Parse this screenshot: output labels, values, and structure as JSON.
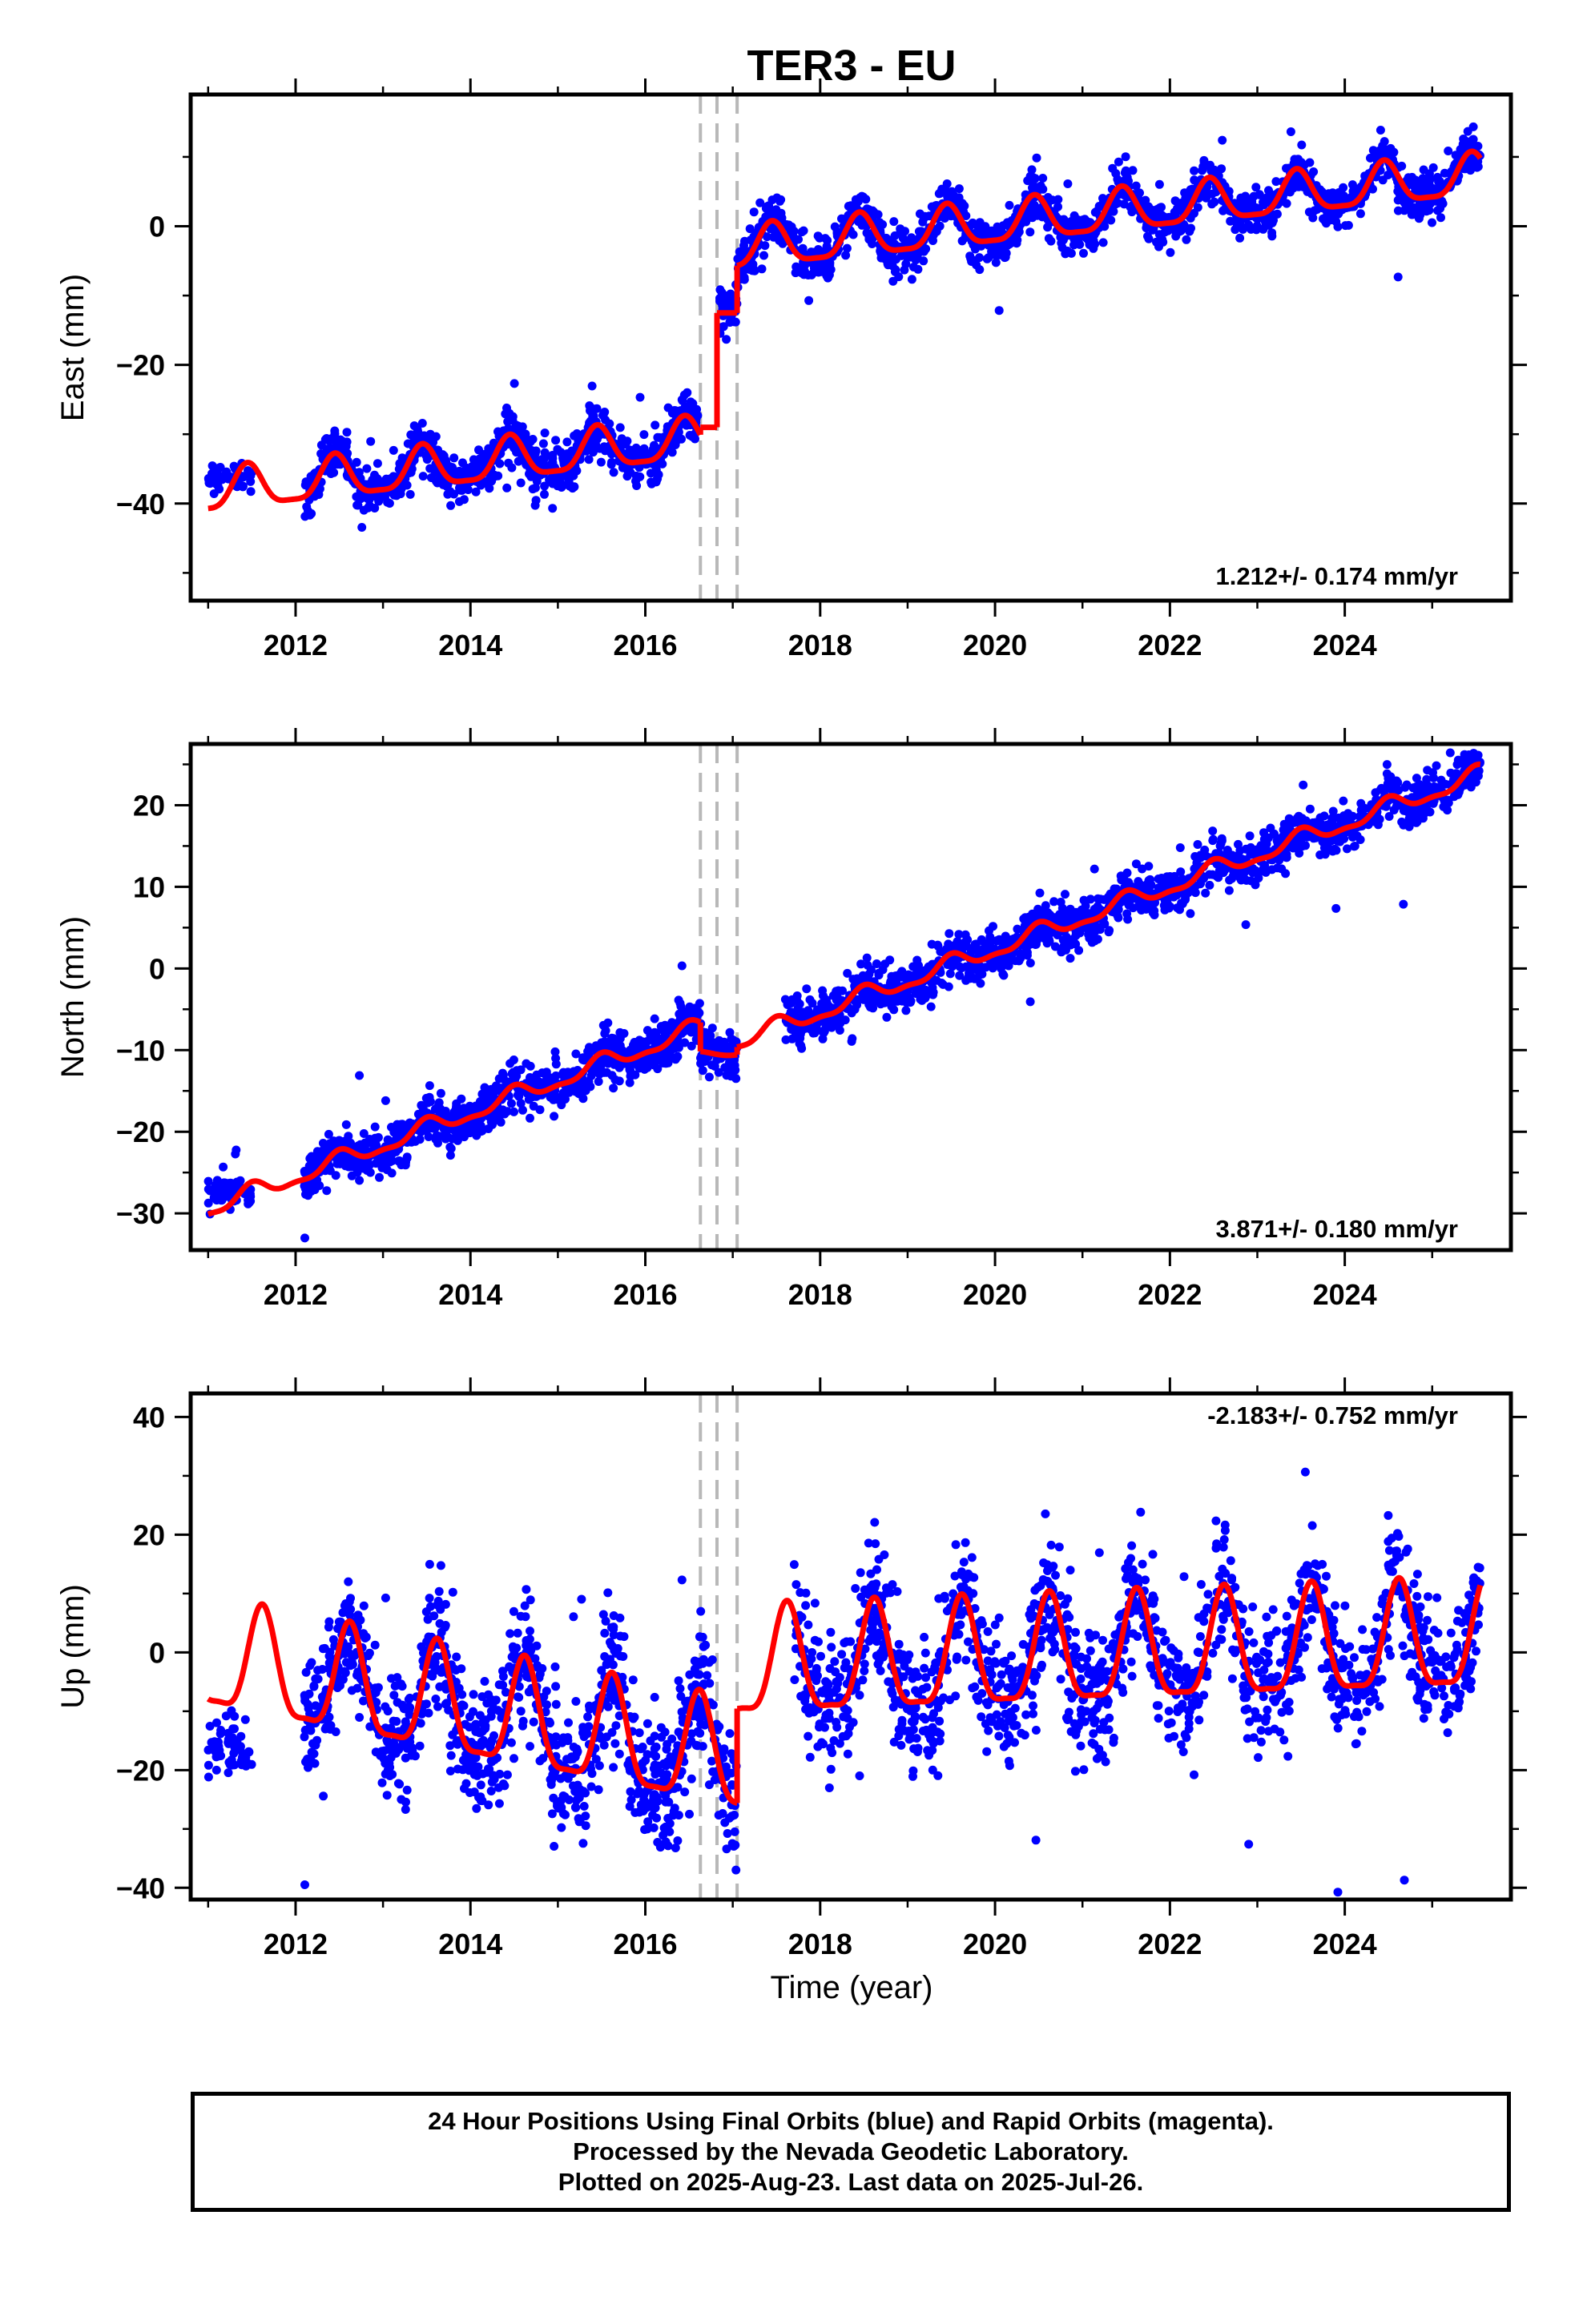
{
  "title": "TER3 - EU",
  "xlabel": "Time (year)",
  "footer": {
    "line1": "24 Hour Positions Using Final Orbits (blue) and Rapid Orbits (magenta).",
    "line2": "Processed by the Nevada Geodetic Laboratory.",
    "line3": "Plotted on 2025-Aug-23. Last data on 2025-Jul-26."
  },
  "colors": {
    "data_points": "#0000ff",
    "model_curve": "#ff0000",
    "offset_lines": "#b8b8b8"
  },
  "chart_data": [
    {
      "type": "scatter",
      "component": "east",
      "ylabel": "East (mm)",
      "rate_label": "1.212+/- 0.174 mm/yr",
      "xlim": [
        2010.8,
        2025.9
      ],
      "ylim": [
        -54,
        19
      ],
      "yticks": [
        -40,
        -20,
        0
      ],
      "xticks": [
        2012,
        2014,
        2016,
        2018,
        2020,
        2022,
        2024
      ],
      "offsets": [
        2016.63,
        2016.82,
        2017.05
      ],
      "model": {
        "seg1": {
          "start": 2011.0,
          "end": 2016.63,
          "base_at_start": -38.5,
          "rate": 1.36,
          "amp_annual": 3.0,
          "peak_phase": 0.45,
          "amp_semi": 0.8
        },
        "seg2": {
          "start": 2016.63,
          "end": 2016.82,
          "level": -29.0
        },
        "seg3": {
          "start": 2016.82,
          "end": 2017.05,
          "level": -12.5
        },
        "seg4": {
          "start": 2017.05,
          "end": 2025.55,
          "base_at_start": -3.5,
          "rate": 1.25,
          "amp_annual": 3.0,
          "peak_phase": 0.45,
          "amp_semi": 0.8
        }
      },
      "scatter_segments": [
        {
          "start": 2011.0,
          "end": 2011.5,
          "offset": -36.0,
          "noise": 1.0,
          "count": 60
        },
        {
          "start": 2012.1,
          "end": 2016.6,
          "noise": 1.6,
          "count": 900
        },
        {
          "start": 2016.85,
          "end": 2017.05,
          "offset": -12.0,
          "noise": 1.5,
          "count": 50
        },
        {
          "start": 2017.05,
          "end": 2025.55,
          "noise": 1.6,
          "count": 1500
        }
      ]
    },
    {
      "type": "scatter",
      "component": "north",
      "ylabel": "North (mm)",
      "rate_label": "3.871+/- 0.180 mm/yr",
      "xlim": [
        2010.8,
        2025.9
      ],
      "ylim": [
        -34.5,
        27.5
      ],
      "yticks": [
        -30,
        -20,
        -10,
        0,
        10,
        20
      ],
      "xticks": [
        2012,
        2014,
        2016,
        2018,
        2020,
        2022,
        2024
      ],
      "offsets": [
        2016.63,
        2016.82,
        2017.05
      ],
      "model": {
        "seg1": {
          "start": 2011.0,
          "end": 2016.63,
          "base_at_start": -29.5,
          "rate": 3.95,
          "amp_annual": 1.0,
          "peak_phase": 0.5,
          "amp_semi": 0.4
        },
        "seg2": {
          "start": 2016.63,
          "end": 2017.05,
          "base_at_start": -10.5,
          "rate": 1.0,
          "amp_annual": 0.5,
          "peak_phase": 0.5,
          "amp_semi": 0.0
        },
        "seg4": {
          "start": 2017.05,
          "end": 2025.55,
          "base_at_start": -9.0,
          "rate": 3.85,
          "amp_annual": 1.0,
          "peak_phase": 0.5,
          "amp_semi": 0.4
        }
      },
      "scatter_segments": [
        {
          "start": 2011.0,
          "end": 2011.5,
          "offset": -27.5,
          "noise": 1.0,
          "count": 60
        },
        {
          "start": 2012.1,
          "end": 2017.05,
          "noise": 1.4,
          "count": 1000
        },
        {
          "start": 2017.6,
          "end": 2025.55,
          "noise": 1.4,
          "count": 1400
        }
      ]
    },
    {
      "type": "scatter",
      "component": "up",
      "ylabel": "Up (mm)",
      "rate_label": "-2.183+/- 0.752 mm/yr",
      "xlim": [
        2010.8,
        2025.9
      ],
      "ylim": [
        -42,
        44
      ],
      "yticks": [
        -40,
        -20,
        0,
        20,
        40
      ],
      "xticks": [
        2012,
        2014,
        2016,
        2018,
        2020,
        2022,
        2024
      ],
      "offsets": [
        2016.63,
        2016.82,
        2017.05
      ],
      "model": {
        "seg1": {
          "start": 2011.0,
          "end": 2017.05,
          "base_at_start": -1.5,
          "rate": -2.9,
          "amp_annual": 9.0,
          "peak_phase": 0.62,
          "amp_semi": 2.5
        },
        "seg4": {
          "start": 2017.05,
          "end": 2025.55,
          "base_at_start": -3.0,
          "rate": 0.55,
          "amp_annual": 9.0,
          "peak_phase": 0.62,
          "amp_semi": 2.5
        }
      },
      "scatter_segments": [
        {
          "start": 2011.0,
          "end": 2011.5,
          "offset": -17.0,
          "noise": 3.0,
          "count": 60
        },
        {
          "start": 2012.1,
          "end": 2017.05,
          "noise": 5.5,
          "count": 1000
        },
        {
          "start": 2017.7,
          "end": 2025.55,
          "noise": 5.5,
          "count": 1400
        }
      ]
    }
  ]
}
